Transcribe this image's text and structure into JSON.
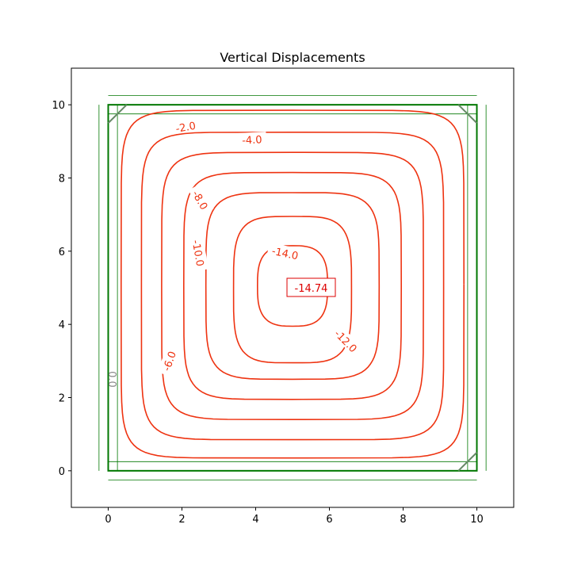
{
  "chart_data": {
    "type": "contour",
    "title": "Vertical Displacements",
    "xlabel": "",
    "ylabel": "",
    "xlim": [
      -1,
      11
    ],
    "ylim": [
      -1,
      11
    ],
    "xticks": [
      0,
      2,
      4,
      6,
      8,
      10
    ],
    "yticks": [
      0,
      2,
      4,
      6,
      8,
      10
    ],
    "grid": false,
    "colors": {
      "contour": "#ee3311",
      "structure": "#007700",
      "support": "#668866",
      "zero_label": "#888888",
      "max_label": "#dd0000"
    },
    "plate": {
      "x": [
        0,
        10
      ],
      "y": [
        0,
        10
      ]
    },
    "max_annotation": {
      "text": "-14.74",
      "x": 5,
      "y": 5
    },
    "contours": [
      {
        "level": -2.0,
        "label": "-2.0",
        "cx": 5,
        "cy": 5.1,
        "rx": 4.65,
        "ry": 4.75,
        "n": 9,
        "label_at": [
          2.1,
          9.4
        ],
        "label_angle": 10
      },
      {
        "level": -4.0,
        "label": "-4.0",
        "cx": 5,
        "cy": 5.05,
        "rx": 4.1,
        "ry": 4.2,
        "n": 8,
        "label_at": [
          3.9,
          9.05
        ],
        "label_angle": 3
      },
      {
        "level": -6.0,
        "label": "-6.0",
        "cx": 5,
        "cy": 5.05,
        "rx": 3.55,
        "ry": 3.65,
        "n": 7,
        "label_at": [
          1.65,
          3.0
        ],
        "label_angle": 70
      },
      {
        "level": -8.0,
        "label": "-8.0",
        "cx": 5,
        "cy": 5.05,
        "rx": 2.95,
        "ry": 3.1,
        "n": 6,
        "label_at": [
          2.5,
          7.4
        ],
        "label_angle": -60
      },
      {
        "level": -10.0,
        "label": "-10.0",
        "cx": 5,
        "cy": 5.05,
        "rx": 2.35,
        "ry": 2.55,
        "n": 5,
        "label_at": [
          2.45,
          5.95
        ],
        "label_angle": -80
      },
      {
        "level": -12.0,
        "label": "-12.0",
        "cx": 5,
        "cy": 4.95,
        "rx": 1.6,
        "ry": 2.0,
        "n": 4,
        "label_at": [
          6.45,
          3.55
        ],
        "label_angle": -45
      },
      {
        "level": -14.0,
        "label": "-14.0",
        "cx": 5,
        "cy": 5.05,
        "rx": 0.95,
        "ry": 1.1,
        "n": 3,
        "label_at": [
          4.8,
          5.95
        ],
        "label_angle": -12
      }
    ],
    "zero_label": {
      "text": "0.0",
      "x": 0.1,
      "y": 2.5,
      "angle": 90
    }
  }
}
